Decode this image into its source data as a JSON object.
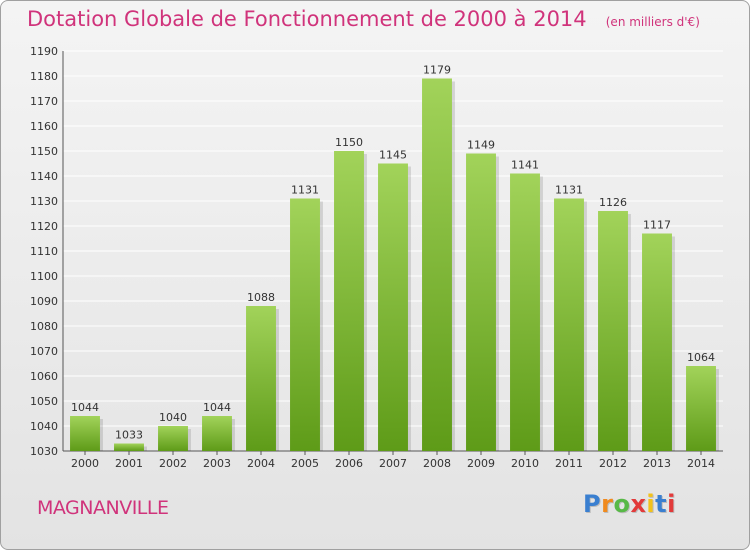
{
  "title": "Dotation Globale de Fonctionnement de 2000 à 2014",
  "unit_note": "(en milliers d'€)",
  "commune": "MAGNANVILLE",
  "logo": {
    "text": "Proxiti",
    "colors": [
      "#3a7fd0",
      "#f08a1e",
      "#58b947",
      "#e23a3a",
      "#f2c21b",
      "#3a7fd0",
      "#e23a3a"
    ]
  },
  "colors": {
    "title": "#d0337b",
    "bar_top": "#a2d35a",
    "bar_bottom": "#5e9b18"
  },
  "chart_data": {
    "type": "bar",
    "title": "Dotation Globale de Fonctionnement de 2000 à 2014",
    "subtitle": "(en milliers d'€)",
    "xlabel": "",
    "ylabel": "",
    "categories": [
      "2000",
      "2001",
      "2002",
      "2003",
      "2004",
      "2005",
      "2006",
      "2007",
      "2008",
      "2009",
      "2010",
      "2011",
      "2012",
      "2013",
      "2014"
    ],
    "values": [
      1044,
      1033,
      1040,
      1044,
      1088,
      1131,
      1150,
      1145,
      1179,
      1149,
      1141,
      1131,
      1126,
      1117,
      1064
    ],
    "ylim": [
      1030,
      1190
    ],
    "yticks": [
      1030,
      1040,
      1050,
      1060,
      1070,
      1080,
      1090,
      1100,
      1110,
      1120,
      1130,
      1140,
      1150,
      1160,
      1170,
      1180,
      1190
    ],
    "grid": true,
    "legend": "none"
  }
}
